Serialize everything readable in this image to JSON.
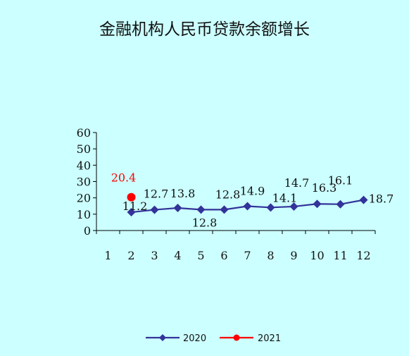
{
  "chart_data": {
    "type": "line",
    "title": "金融机构人民币贷款余额增长",
    "xlabel": "",
    "ylabel": "",
    "categories": [
      "1",
      "2",
      "3",
      "4",
      "5",
      "6",
      "7",
      "8",
      "9",
      "10",
      "11",
      "12"
    ],
    "ylim": [
      0,
      60
    ],
    "yticks": [
      "0",
      "10",
      "20",
      "30",
      "40",
      "50",
      "60"
    ],
    "grid": false,
    "legend_position": "bottom",
    "series": [
      {
        "name": "2020",
        "color": "#333399",
        "marker": "diamond",
        "x": [
          2,
          3,
          4,
          5,
          6,
          7,
          8,
          9,
          10,
          11,
          12
        ],
        "values": [
          11.2,
          12.7,
          13.8,
          12.8,
          12.8,
          14.9,
          14.1,
          14.7,
          16.3,
          16.1,
          18.7
        ],
        "labels": [
          "11.2",
          "12.7",
          "13.8",
          "12.8",
          "12.8",
          "14.9",
          "14.1",
          "14.7",
          "16.3",
          "16.1",
          "18.7"
        ]
      },
      {
        "name": "2021",
        "color": "#ff0000",
        "marker": "circle",
        "x": [
          2
        ],
        "values": [
          20.4
        ],
        "labels": [
          "20.4"
        ]
      }
    ]
  }
}
